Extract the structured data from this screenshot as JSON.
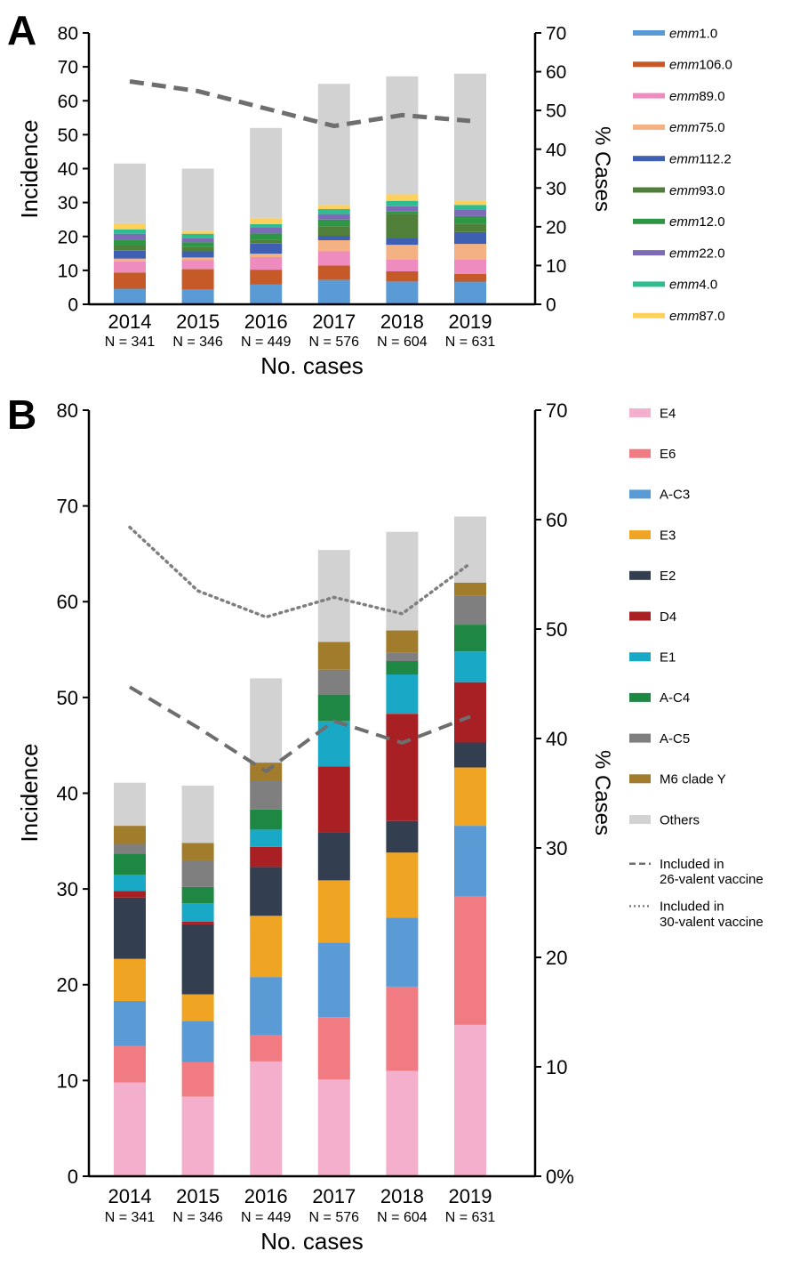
{
  "chart_data": [
    {
      "panel": "A",
      "type": "bar",
      "stacked": true,
      "ylabel": "Incidence",
      "y2label": "% Cases",
      "xlabel": "No. cases",
      "ylim": [
        0,
        80
      ],
      "yticks": [
        "0",
        "10",
        "20",
        "30",
        "40",
        "50",
        "60",
        "70",
        "80"
      ],
      "y2lim": [
        0,
        70
      ],
      "y2ticks": [
        "0",
        "10",
        "20",
        "30",
        "40",
        "50",
        "60",
        "70"
      ],
      "categories": [
        "2014",
        "2015",
        "2016",
        "2017",
        "2018",
        "2019"
      ],
      "case_counts": [
        "N = 341",
        "N = 346",
        "N = 449",
        "N = 576",
        "N = 604",
        "N = 631"
      ],
      "legend_position": "right",
      "series": [
        {
          "prefix": "emm",
          "suffix": "1.0",
          "color": "#5b9bd5",
          "values": [
            4.6,
            4.4,
            5.8,
            7.2,
            6.7,
            6.7
          ],
          "legend": true
        },
        {
          "prefix": "emm",
          "suffix": "106.0",
          "color": "#c55a28",
          "values": [
            4.8,
            6.0,
            4.4,
            4.2,
            3.0,
            2.3
          ],
          "legend": true
        },
        {
          "prefix": "emm",
          "suffix": "89.0",
          "color": "#ee8cc0",
          "values": [
            3.2,
            2.6,
            3.7,
            4.2,
            3.6,
            4.3
          ],
          "legend": true
        },
        {
          "prefix": "emm",
          "suffix": "75.0",
          "color": "#f4b183",
          "values": [
            0.9,
            0.8,
            1.0,
            3.3,
            4.2,
            4.5
          ],
          "legend": true
        },
        {
          "prefix": "emm",
          "suffix": "112.2",
          "color": "#3f5fb2",
          "values": [
            2.3,
            1.8,
            3.0,
            1.3,
            1.9,
            3.5
          ],
          "legend": true
        },
        {
          "prefix": "emm",
          "suffix": "93.0",
          "color": "#4f7f39",
          "values": [
            1.5,
            1.3,
            1.0,
            2.8,
            7.3,
            2.5
          ],
          "legend": true
        },
        {
          "prefix": "emm",
          "suffix": "12.0",
          "color": "#2f9645",
          "values": [
            1.7,
            1.4,
            2.0,
            2.0,
            0.8,
            2.2
          ],
          "legend": true
        },
        {
          "prefix": "emm",
          "suffix": "22.0",
          "color": "#7e6bb8",
          "values": [
            1.8,
            1.3,
            1.8,
            1.6,
            1.4,
            1.8
          ],
          "legend": true
        },
        {
          "prefix": "emm",
          "suffix": "4.0",
          "color": "#2ebc90",
          "values": [
            1.3,
            1.2,
            0.9,
            1.5,
            1.6,
            1.5
          ],
          "legend": true
        },
        {
          "prefix": "emm",
          "suffix": "87.0",
          "color": "#fdd15c",
          "values": [
            1.8,
            0.9,
            1.9,
            1.2,
            1.9,
            1.2
          ],
          "legend": true
        },
        {
          "prefix": "",
          "suffix": "",
          "color": "#d2d2d2",
          "values": [
            17.6,
            18.3,
            26.5,
            35.7,
            34.8,
            37.5
          ],
          "legend": false
        }
      ],
      "lines": [
        {
          "style": "dashed",
          "color": "#6e6e6e",
          "values_pct": [
            57.5,
            55.0,
            50.5,
            46.0,
            48.8,
            47.3
          ]
        }
      ]
    },
    {
      "panel": "B",
      "type": "bar",
      "stacked": true,
      "ylabel": "Incidence",
      "y2label": "% Cases",
      "xlabel": "No. cases",
      "ylim": [
        0,
        80
      ],
      "yticks": [
        "0",
        "10",
        "20",
        "30",
        "40",
        "50",
        "60",
        "70",
        "80"
      ],
      "y2lim": [
        0,
        70
      ],
      "y2ticks": [
        "0%",
        "10",
        "20",
        "30",
        "40",
        "50",
        "60",
        "70"
      ],
      "categories": [
        "2014",
        "2015",
        "2016",
        "2017",
        "2018",
        "2019"
      ],
      "case_counts": [
        "N = 341",
        "N = 346",
        "N = 449",
        "N = 576",
        "N = 604",
        "N = 631"
      ],
      "legend_position": "right",
      "series": [
        {
          "name": "E4",
          "color": "#f4afcc",
          "values": [
            9.8,
            8.3,
            12.0,
            10.1,
            11.0,
            15.8
          ]
        },
        {
          "name": "E6",
          "color": "#f07b83",
          "values": [
            3.8,
            3.6,
            2.7,
            6.5,
            8.8,
            13.4
          ]
        },
        {
          "name": "A-C3",
          "color": "#5b9bd5",
          "values": [
            4.7,
            4.3,
            6.1,
            7.8,
            7.2,
            7.4
          ]
        },
        {
          "name": "E3",
          "color": "#efa424",
          "values": [
            4.4,
            2.8,
            6.4,
            6.5,
            6.8,
            6.1
          ]
        },
        {
          "name": "E2",
          "color": "#333f50",
          "values": [
            6.4,
            7.3,
            5.1,
            5.0,
            3.3,
            2.6
          ]
        },
        {
          "name": "D4",
          "color": "#a81f24",
          "values": [
            0.7,
            0.3,
            2.1,
            6.9,
            11.2,
            6.3
          ]
        },
        {
          "name": "E1",
          "color": "#19a9c6",
          "values": [
            1.7,
            1.9,
            1.8,
            4.7,
            4.1,
            3.2
          ]
        },
        {
          "name": "A-C4",
          "color": "#1e8743",
          "values": [
            2.2,
            1.7,
            2.1,
            2.8,
            1.4,
            2.8
          ]
        },
        {
          "name": "A-C5",
          "color": "#7f7f7f",
          "values": [
            1.0,
            2.8,
            3.0,
            2.6,
            0.9,
            3.0
          ]
        },
        {
          "name": "M6 clade Y",
          "color": "#a07c2c",
          "values": [
            1.9,
            1.8,
            1.9,
            2.9,
            2.3,
            1.4
          ]
        },
        {
          "name": "Others",
          "color": "#d2d2d2",
          "values": [
            4.5,
            6.0,
            8.8,
            9.6,
            10.3,
            6.9
          ]
        }
      ],
      "lines": [
        {
          "name": "Included in 26-valent vaccine",
          "style": "dashed",
          "color": "#6e6e6e",
          "values_pct": [
            44.7,
            41.0,
            37.0,
            41.6,
            39.6,
            42.0
          ]
        },
        {
          "name": "Included in 30-valent vaccine",
          "style": "dotted",
          "color": "#7f7f7f",
          "values_pct": [
            59.3,
            53.5,
            51.1,
            52.9,
            51.4,
            56.0
          ]
        }
      ]
    }
  ]
}
